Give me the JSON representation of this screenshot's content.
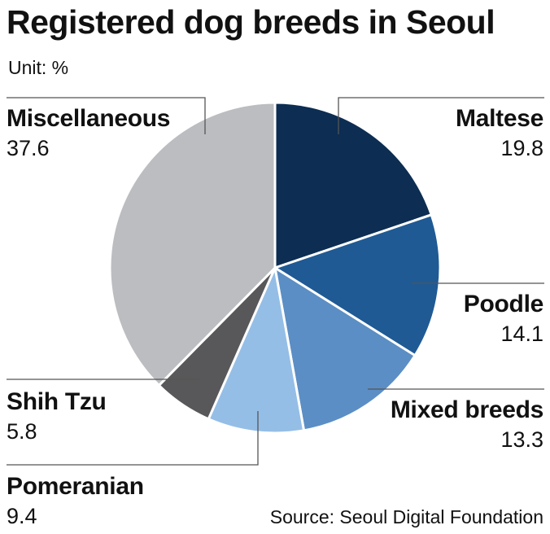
{
  "chart_data": {
    "type": "pie",
    "title": "Registered dog breeds in Seoul",
    "unit_label": "Unit: %",
    "source": "Source: Seoul Digital Foundation",
    "slices": [
      {
        "name": "Maltese",
        "value": 19.8,
        "value_text": "19.8",
        "color": "#0d2d52"
      },
      {
        "name": "Poodle",
        "value": 14.1,
        "value_text": "14.1",
        "color": "#1f5a94"
      },
      {
        "name": "Mixed breeds",
        "value": 13.3,
        "value_text": "13.3",
        "color": "#5b8ec4"
      },
      {
        "name": "Pomeranian",
        "value": 9.4,
        "value_text": "9.4",
        "color": "#95bee6"
      },
      {
        "name": "Shih Tzu",
        "value": 5.8,
        "value_text": "5.8",
        "color": "#58585a"
      },
      {
        "name": "Miscellaneous",
        "value": 37.6,
        "value_text": "37.6",
        "color": "#bcbdc0"
      }
    ]
  }
}
